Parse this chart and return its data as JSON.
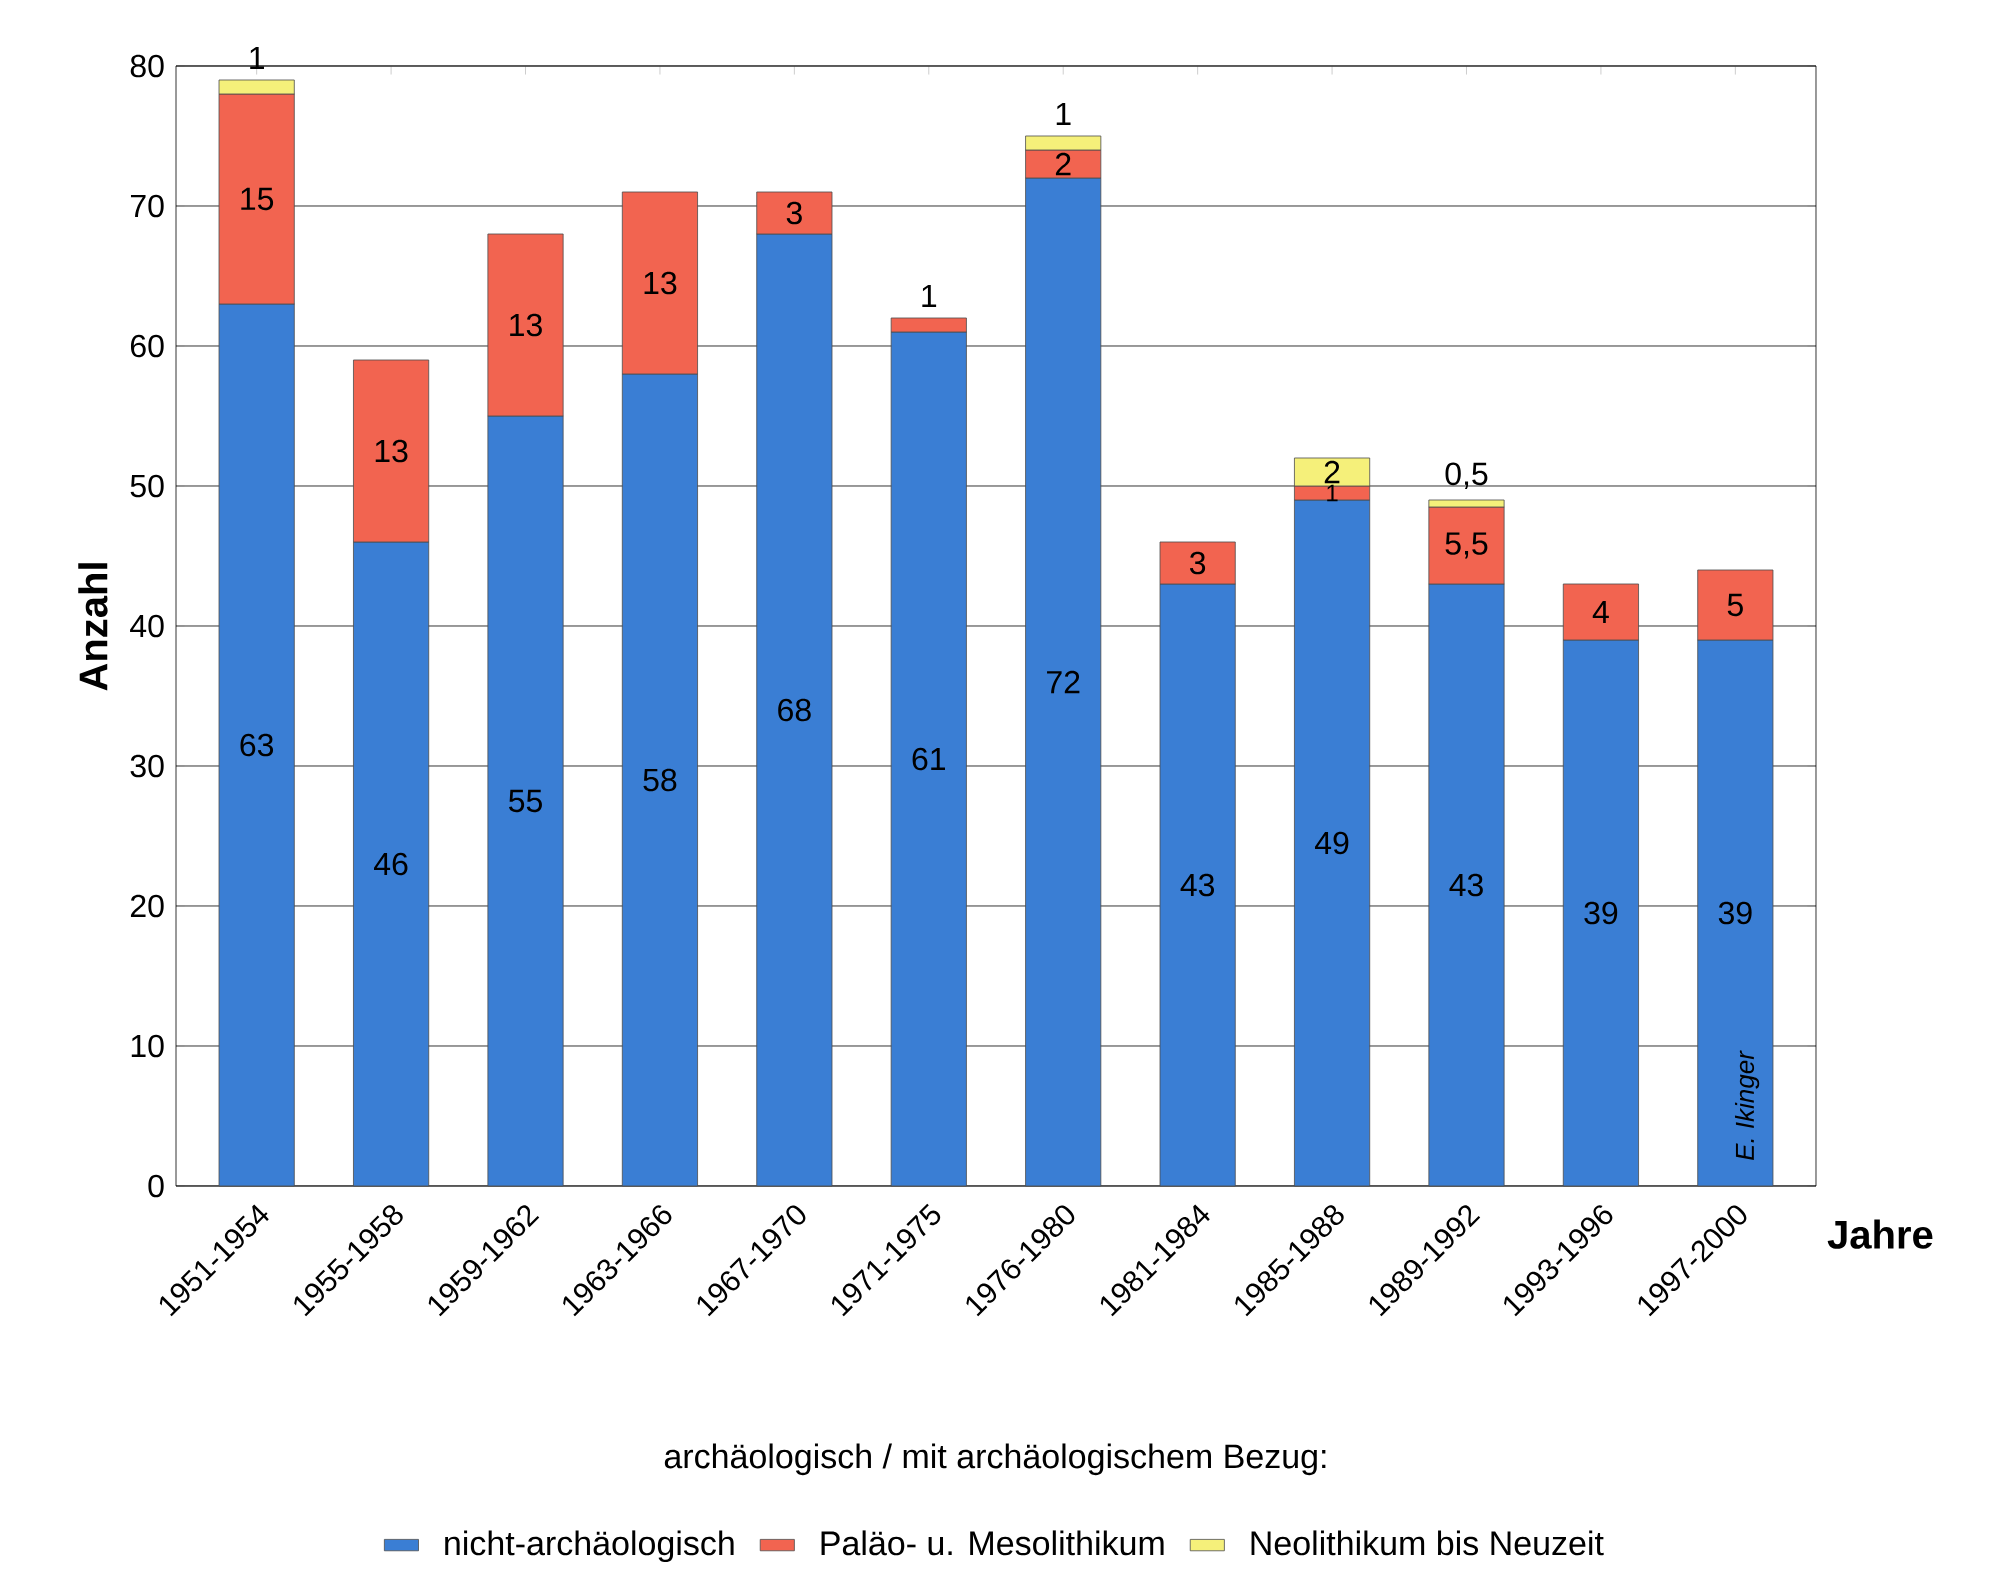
{
  "chart_data": {
    "type": "bar",
    "stacked": true,
    "xlabel": "Jahre",
    "ylabel": "Anzahl",
    "categories": [
      "1951-1954",
      "1955-1958",
      "1959-1962",
      "1963-1966",
      "1967-1970",
      "1971-1975",
      "1976-1980",
      "1981-1984",
      "1985-1988",
      "1989-1992",
      "1993-1996",
      "1997-2000"
    ],
    "series": [
      {
        "name": "nicht-archäologisch",
        "color": "#3a7ed4",
        "values": [
          63,
          46,
          55,
          58,
          68,
          61,
          72,
          43,
          49,
          43,
          39,
          39
        ],
        "value_labels": [
          "63",
          "46",
          "55",
          "58",
          "68",
          "61",
          "72",
          "43",
          "49",
          "43",
          "39",
          "39"
        ]
      },
      {
        "name": "Paläo- u. Mesolithikum",
        "color": "#f26450",
        "values": [
          15,
          13,
          13,
          13,
          3,
          1,
          2,
          3,
          1,
          5.5,
          4,
          5
        ],
        "value_labels": [
          "15",
          "13",
          "13",
          "13",
          "3",
          "1",
          "2",
          "3",
          "1",
          "5,5",
          "4",
          "5"
        ]
      },
      {
        "name": "Neolithikum bis Neuzeit",
        "color": "#f5f07a",
        "values": [
          1,
          null,
          null,
          null,
          null,
          null,
          1,
          null,
          2,
          0.5,
          null,
          null
        ],
        "value_labels": [
          "1",
          null,
          null,
          null,
          null,
          null,
          "1",
          null,
          "2",
          "0,5",
          null,
          null
        ]
      }
    ],
    "legend_title": "archäologisch / mit archäologischem Bezug:",
    "ylim": [
      0,
      80
    ],
    "yticks": [
      0,
      10,
      20,
      30,
      40,
      50,
      60,
      70,
      80
    ],
    "grid": "y",
    "legend": "bottom",
    "annotations": [
      "E. Ikinger"
    ]
  }
}
